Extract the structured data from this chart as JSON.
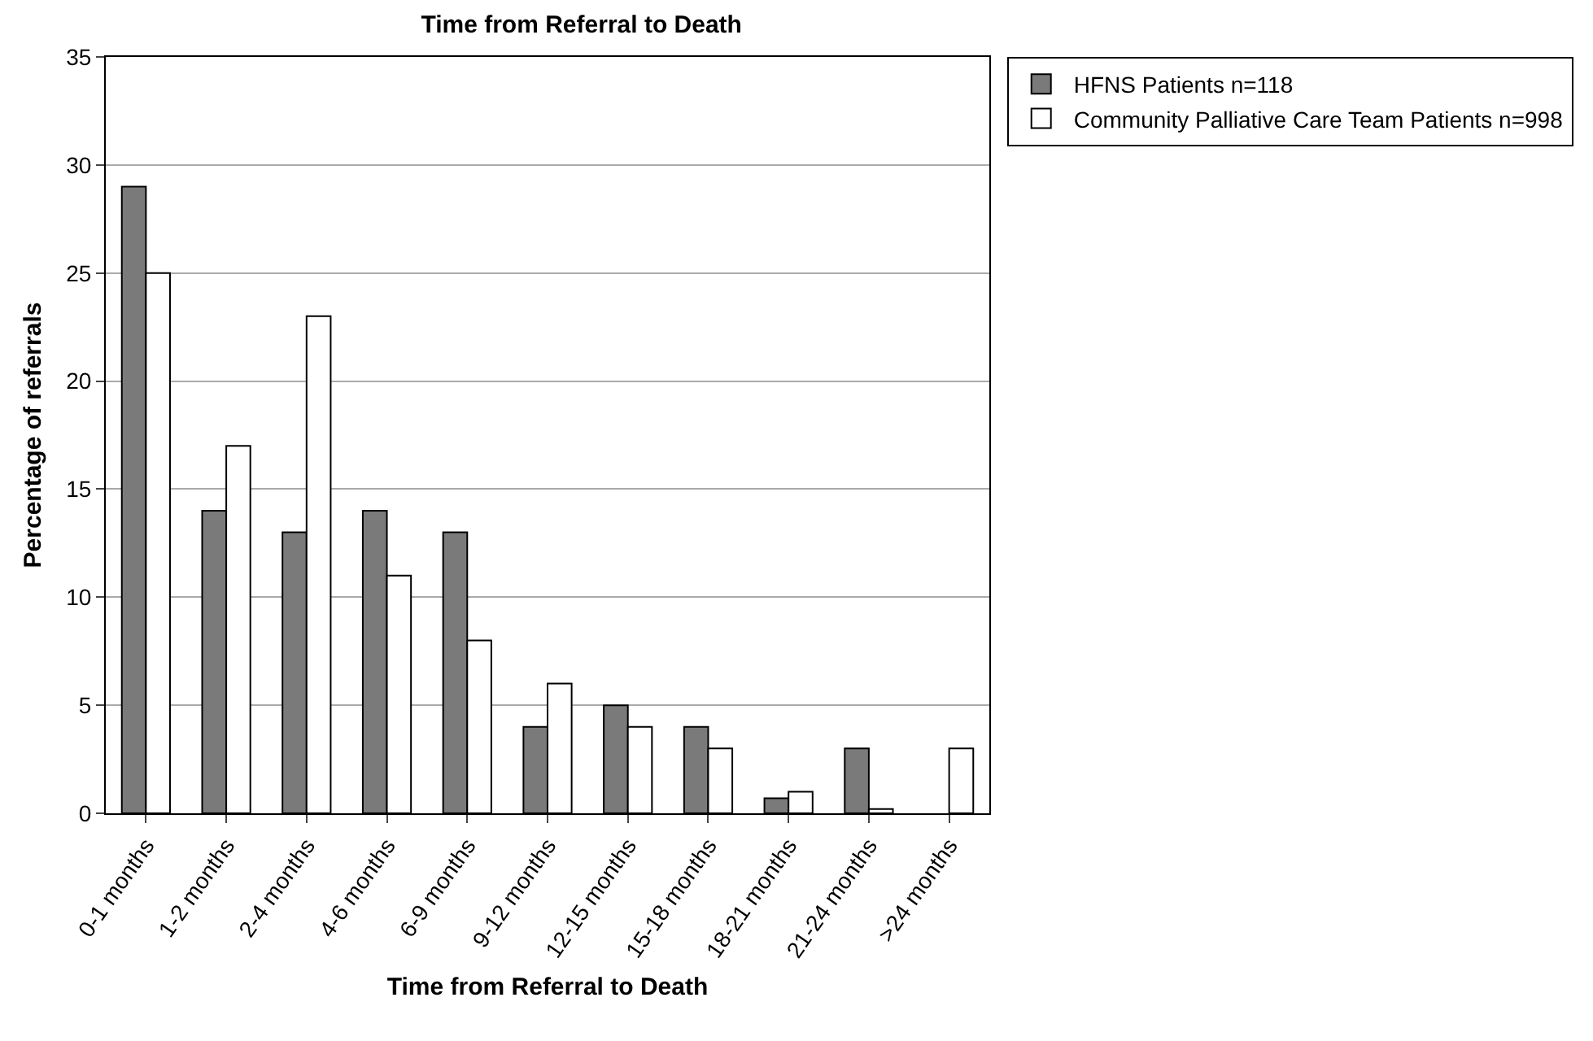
{
  "chart_data": {
    "type": "bar",
    "title": "Time from Referral to Death",
    "xlabel": "Time from Referral to Death",
    "ylabel": "Percentage of referrals",
    "categories": [
      "0-1 months",
      "1-2 months",
      "2-4 months",
      "4-6 months",
      "6-9 months",
      "9-12 months",
      "12-15 months",
      "15-18 months",
      "18-21 months",
      "21-24 months",
      ">24 months"
    ],
    "series": [
      {
        "name": "HFNS Patients n=118",
        "color": "#7a7a7a",
        "values": [
          29,
          14,
          13,
          14,
          13,
          4,
          5,
          4,
          0.7,
          3,
          null
        ]
      },
      {
        "name": "Community Palliative Care Team Patients n=998",
        "color": "#ffffff",
        "values": [
          25,
          17,
          23,
          11,
          8,
          6,
          4,
          3,
          1,
          0.2,
          3
        ]
      }
    ],
    "ylim": [
      0,
      35
    ],
    "yticks": [
      0,
      5,
      10,
      15,
      20,
      25,
      30,
      35
    ],
    "grid": "y",
    "legend": "top right"
  }
}
